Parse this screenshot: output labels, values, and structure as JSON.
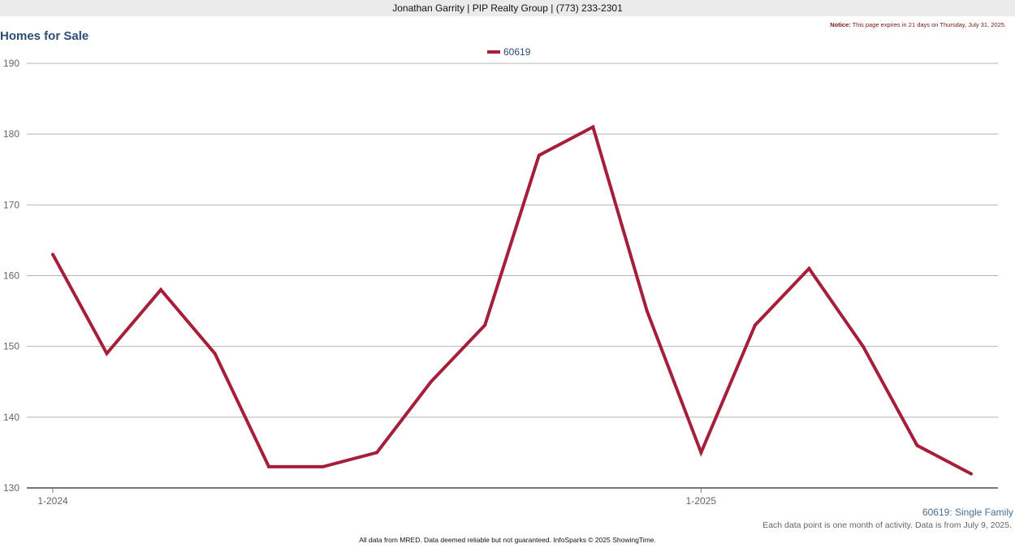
{
  "header": {
    "agent_line": "Jonathan Garrity | PIP Realty Group | (773) 233-2301",
    "notice_label": "Notice:",
    "notice_text": "This page expires in 21 days on Thursday, July 31, 2025."
  },
  "chart_data": {
    "type": "line",
    "title": "Homes for Sale",
    "x": [
      "2024-01",
      "2024-02",
      "2024-03",
      "2024-04",
      "2024-05",
      "2024-06",
      "2024-07",
      "2024-08",
      "2024-09",
      "2024-10",
      "2024-11",
      "2024-12",
      "2025-01",
      "2025-02",
      "2025-03",
      "2025-04",
      "2025-05",
      "2025-06"
    ],
    "x_tick_labels": [
      {
        "at": "2024-01",
        "label": "1-2024"
      },
      {
        "at": "2025-01",
        "label": "1-2025"
      }
    ],
    "series": [
      {
        "name": "60619",
        "color": "#a51f3a",
        "values": [
          163,
          149,
          158,
          149,
          133,
          133,
          135,
          145,
          153,
          177,
          181,
          155,
          135,
          153,
          161,
          150,
          136,
          132
        ]
      }
    ],
    "ylim": [
      130,
      190
    ],
    "y_ticks": [
      130,
      140,
      150,
      160,
      170,
      180,
      190
    ],
    "grid": true,
    "legend_position": "top-center"
  },
  "footnotes": {
    "series_note": "60619: Single Family",
    "data_note": "Each data point is one month of activity. Data is from July 9, 2025.",
    "footer": "All data from MRED. Data deemed reliable but not guaranteed. InfoSparks © 2025 ShowingTime."
  }
}
